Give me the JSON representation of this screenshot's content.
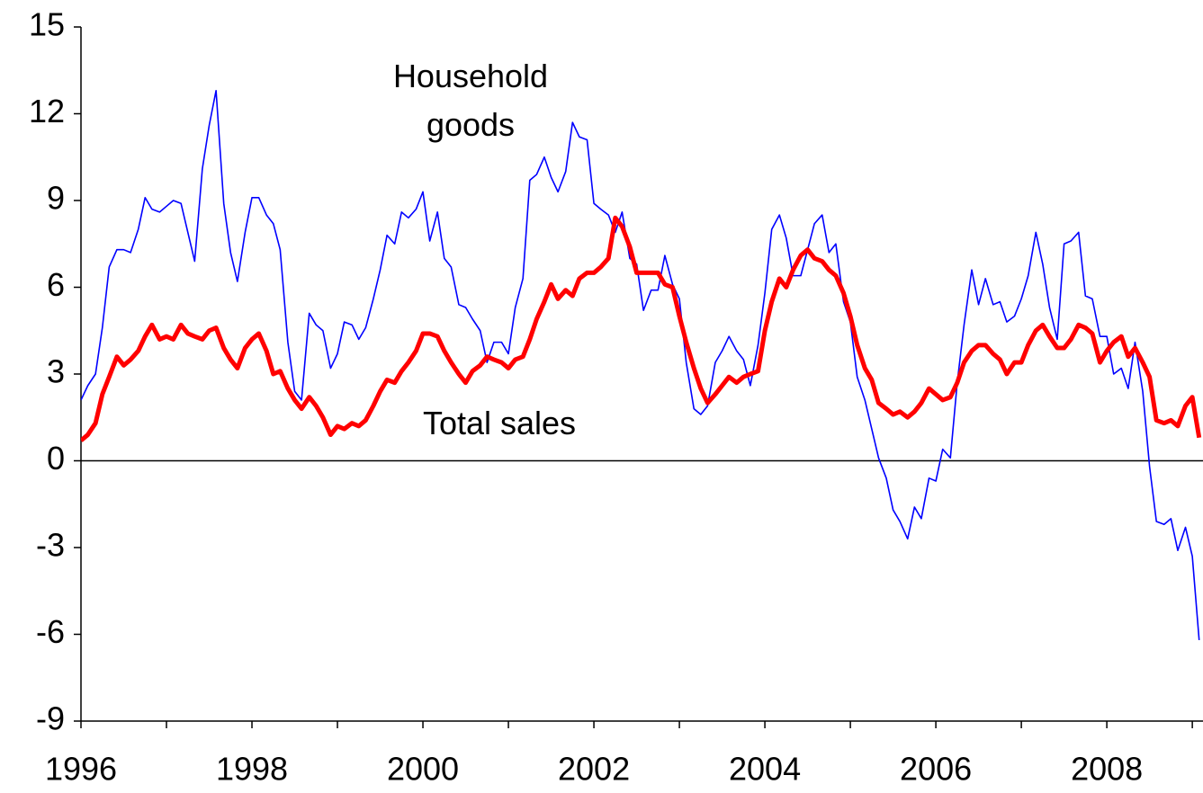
{
  "chart_data": {
    "type": "line",
    "x": [
      1996,
      1996.08,
      1996.17,
      1996.25,
      1996.33,
      1996.42,
      1996.5,
      1996.58,
      1996.67,
      1996.75,
      1996.83,
      1996.92,
      1997,
      1997.08,
      1997.17,
      1997.25,
      1997.33,
      1997.42,
      1997.5,
      1997.58,
      1997.67,
      1997.75,
      1997.83,
      1997.92,
      1998,
      1998.08,
      1998.17,
      1998.25,
      1998.33,
      1998.42,
      1998.5,
      1998.58,
      1998.67,
      1998.75,
      1998.83,
      1998.92,
      1999,
      1999.08,
      1999.17,
      1999.25,
      1999.33,
      1999.42,
      1999.5,
      1999.58,
      1999.67,
      1999.75,
      1999.83,
      1999.92,
      2000,
      2000.08,
      2000.17,
      2000.25,
      2000.33,
      2000.42,
      2000.5,
      2000.58,
      2000.67,
      2000.75,
      2000.83,
      2000.92,
      2001,
      2001.08,
      2001.17,
      2001.25,
      2001.33,
      2001.42,
      2001.5,
      2001.58,
      2001.67,
      2001.75,
      2001.83,
      2001.92,
      2002,
      2002.08,
      2002.17,
      2002.25,
      2002.33,
      2002.42,
      2002.5,
      2002.58,
      2002.67,
      2002.75,
      2002.83,
      2002.92,
      2003,
      2003.08,
      2003.17,
      2003.25,
      2003.33,
      2003.42,
      2003.5,
      2003.58,
      2003.67,
      2003.75,
      2003.83,
      2003.92,
      2004,
      2004.08,
      2004.17,
      2004.25,
      2004.33,
      2004.42,
      2004.5,
      2004.58,
      2004.67,
      2004.75,
      2004.83,
      2004.92,
      2005,
      2005.08,
      2005.17,
      2005.25,
      2005.33,
      2005.42,
      2005.5,
      2005.58,
      2005.67,
      2005.75,
      2005.83,
      2005.92,
      2006,
      2006.08,
      2006.17,
      2006.25,
      2006.33,
      2006.42,
      2006.5,
      2006.58,
      2006.67,
      2006.75,
      2006.83,
      2006.92,
      2007,
      2007.08,
      2007.17,
      2007.25,
      2007.33,
      2007.42,
      2007.5,
      2007.58,
      2007.67,
      2007.75,
      2007.83,
      2007.92,
      2008,
      2008.08,
      2008.17,
      2008.25,
      2008.33,
      2008.42,
      2008.5,
      2008.58,
      2008.67,
      2008.75,
      2008.83,
      2008.92,
      2009,
      2009.08
    ],
    "series": [
      {
        "name": "Household goods",
        "color": "#0000ff",
        "width": 1.6,
        "values": [
          2.1,
          2.6,
          3.0,
          4.6,
          6.7,
          7.3,
          7.3,
          7.2,
          8.0,
          9.1,
          8.7,
          8.6,
          8.8,
          9.0,
          8.9,
          7.9,
          6.9,
          10.1,
          11.6,
          12.8,
          8.9,
          7.2,
          6.2,
          7.9,
          9.1,
          9.1,
          8.5,
          8.2,
          7.3,
          4.1,
          2.4,
          2.1,
          5.1,
          4.7,
          4.5,
          3.2,
          3.7,
          4.8,
          4.7,
          4.2,
          4.6,
          5.6,
          6.6,
          7.8,
          7.5,
          8.6,
          8.4,
          8.7,
          9.3,
          7.6,
          8.6,
          7.0,
          6.7,
          5.4,
          5.3,
          4.9,
          4.5,
          3.4,
          4.1,
          4.1,
          3.7,
          5.3,
          6.3,
          9.7,
          9.9,
          10.5,
          9.8,
          9.3,
          10.0,
          11.7,
          11.2,
          11.1,
          8.9,
          8.7,
          8.5,
          7.9,
          8.6,
          7.0,
          6.8,
          5.2,
          5.9,
          5.9,
          7.1,
          6.1,
          5.6,
          3.4,
          1.8,
          1.6,
          1.9,
          3.4,
          3.8,
          4.3,
          3.8,
          3.5,
          2.6,
          4.0,
          5.8,
          8.0,
          8.5,
          7.7,
          6.4,
          6.4,
          7.3,
          8.2,
          8.5,
          7.2,
          7.5,
          5.5,
          4.8,
          2.9,
          2.1,
          1.1,
          0.1,
          -0.6,
          -1.7,
          -2.1,
          -2.7,
          -1.6,
          -2.0,
          -0.6,
          -0.7,
          0.4,
          0.1,
          2.7,
          4.7,
          6.6,
          5.4,
          6.3,
          5.4,
          5.5,
          4.8,
          5.0,
          5.6,
          6.4,
          7.9,
          6.8,
          5.3,
          4.2,
          7.5,
          7.6,
          7.9,
          5.7,
          5.6,
          4.3,
          4.3,
          3.0,
          3.2,
          2.5,
          4.1,
          2.4,
          -0.2,
          -2.1,
          -2.2,
          -2.0,
          -3.1,
          -2.3,
          -3.3,
          -6.2
        ]
      },
      {
        "name": "Total sales",
        "color": "#ff0000",
        "width": 5,
        "values": [
          0.7,
          0.9,
          1.3,
          2.3,
          2.9,
          3.6,
          3.3,
          3.5,
          3.8,
          4.3,
          4.7,
          4.2,
          4.3,
          4.2,
          4.7,
          4.4,
          4.3,
          4.2,
          4.5,
          4.6,
          3.9,
          3.5,
          3.2,
          3.9,
          4.2,
          4.4,
          3.8,
          3.0,
          3.1,
          2.5,
          2.1,
          1.8,
          2.2,
          1.9,
          1.5,
          0.9,
          1.2,
          1.1,
          1.3,
          1.2,
          1.4,
          1.9,
          2.4,
          2.8,
          2.7,
          3.1,
          3.4,
          3.8,
          4.4,
          4.4,
          4.3,
          3.8,
          3.4,
          3.0,
          2.7,
          3.1,
          3.3,
          3.6,
          3.5,
          3.4,
          3.2,
          3.5,
          3.6,
          4.2,
          4.9,
          5.5,
          6.1,
          5.6,
          5.9,
          5.7,
          6.3,
          6.5,
          6.5,
          6.7,
          7.0,
          8.4,
          8.1,
          7.4,
          6.5,
          6.5,
          6.5,
          6.5,
          6.1,
          6.0,
          5.0,
          4.1,
          3.2,
          2.5,
          2.0,
          2.3,
          2.6,
          2.9,
          2.7,
          2.9,
          3.0,
          3.1,
          4.5,
          5.5,
          6.3,
          6.0,
          6.6,
          7.1,
          7.3,
          7.0,
          6.9,
          6.6,
          6.4,
          5.8,
          5.0,
          4.0,
          3.2,
          2.8,
          2.0,
          1.8,
          1.6,
          1.7,
          1.5,
          1.7,
          2.0,
          2.5,
          2.3,
          2.1,
          2.2,
          2.7,
          3.4,
          3.8,
          4.0,
          4.0,
          3.7,
          3.5,
          3.0,
          3.4,
          3.4,
          4.0,
          4.5,
          4.7,
          4.3,
          3.9,
          3.9,
          4.2,
          4.7,
          4.6,
          4.4,
          3.4,
          3.8,
          4.1,
          4.3,
          3.6,
          3.9,
          3.4,
          2.9,
          1.4,
          1.3,
          1.4,
          1.2,
          1.9,
          2.2,
          0.8
        ]
      }
    ],
    "xlim": [
      1996,
      2009.125
    ],
    "xticks": [
      1996,
      1998,
      2000,
      2002,
      2004,
      2006,
      2008
    ],
    "xminor_ticks": [
      1997,
      1999,
      2001,
      2003,
      2005,
      2007,
      2009
    ],
    "ylim": [
      -9,
      15
    ],
    "yticks": [
      -9,
      -6,
      -3,
      0,
      3,
      6,
      9,
      12,
      15
    ],
    "zero_line": true
  }
}
